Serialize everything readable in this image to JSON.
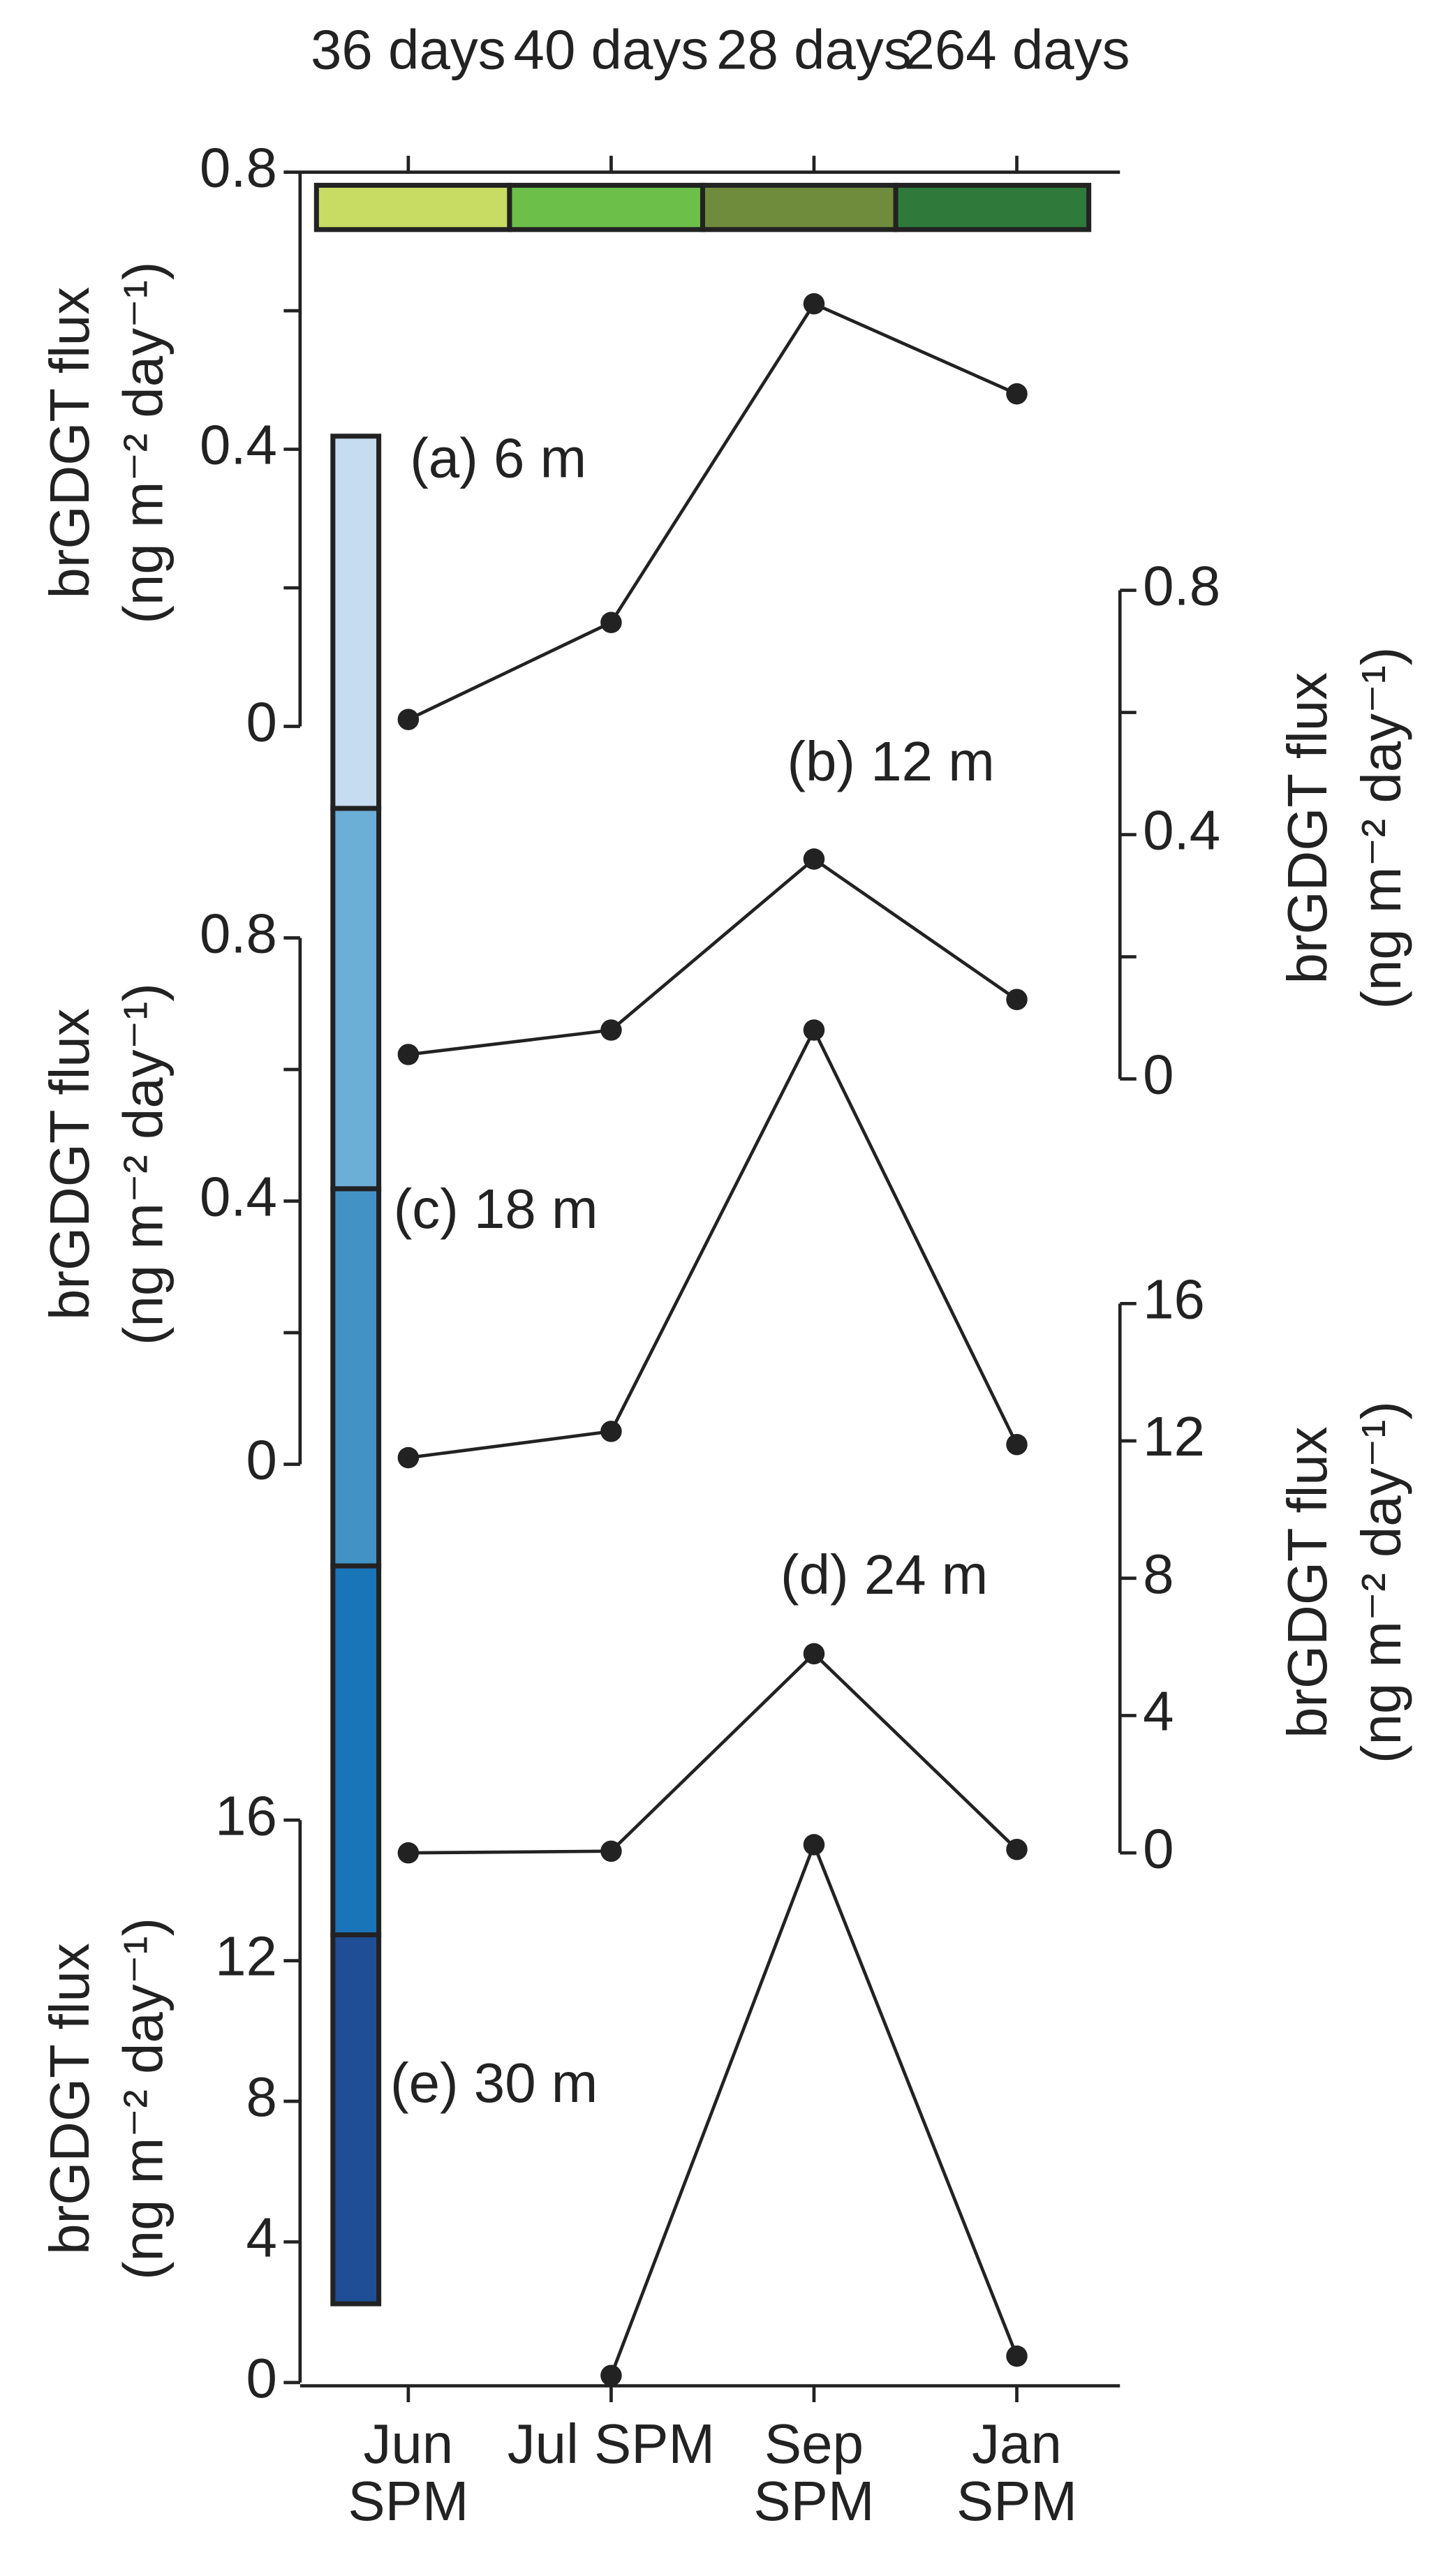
{
  "chart_data": [
    {
      "type": "line",
      "label": "(a) 6 m",
      "ylabel": "brGDGT flux",
      "yunit": "(ng m⁻² day⁻¹)",
      "axis_side": "left",
      "values": [
        0.01,
        0.15,
        0.61,
        0.48
      ],
      "ylim": [
        0,
        0.8
      ],
      "yticks": [
        0,
        0.4,
        0.8
      ],
      "minor_yticks": [
        0.2,
        0.6
      ],
      "line_color": "#222222",
      "depth_color": "#c6dcf0",
      "durations": [
        "36 days",
        "40 days",
        "28 days",
        "264 days"
      ],
      "duration_colors": [
        "#c8dc64",
        "#6cc04a",
        "#6f8c3c",
        "#2f7a3a"
      ]
    },
    {
      "type": "line",
      "label": "(b) 12 m",
      "ylabel": "brGDGT flux",
      "yunit": "(ng m⁻² day⁻¹)",
      "axis_side": "right",
      "values": [
        0.04,
        0.08,
        0.36,
        0.13
      ],
      "ylim": [
        0,
        0.8
      ],
      "yticks": [
        0,
        0.4,
        0.8
      ],
      "minor_yticks": [
        0.2,
        0.6
      ],
      "line_color": "#222222",
      "depth_color": "#6baed6"
    },
    {
      "type": "line",
      "label": "(c) 18 m",
      "ylabel": "brGDGT flux",
      "yunit": "(ng m⁻² day⁻¹)",
      "axis_side": "left",
      "values": [
        0.01,
        0.05,
        0.66,
        0.03
      ],
      "ylim": [
        0,
        0.8
      ],
      "yticks": [
        0,
        0.4,
        0.8
      ],
      "minor_yticks": [
        0.2,
        0.6
      ],
      "line_color": "#222222",
      "depth_color": "#4292c6"
    },
    {
      "type": "line",
      "label": "(d) 24 m",
      "ylabel": "brGDGT flux",
      "yunit": "(ng m⁻² day⁻¹)",
      "axis_side": "right",
      "values": [
        0,
        0.05,
        5.8,
        0.1
      ],
      "ylim": [
        0,
        16
      ],
      "yticks": [
        0,
        4,
        8,
        12,
        16
      ],
      "line_color": "#222222",
      "depth_color": "#1a74b8"
    },
    {
      "type": "line",
      "label": "(e) 30 m",
      "ylabel": "brGDGT flux",
      "yunit": "(ng m⁻² day⁻¹)",
      "axis_side": "left",
      "values": [
        null,
        0.2,
        15.3,
        0.75
      ],
      "ylim": [
        0,
        16
      ],
      "yticks": [
        0,
        4,
        8,
        12,
        16
      ],
      "line_color": "#222222",
      "depth_color": "#1f4e96",
      "categories": [
        "Jun SPM",
        "Jul SPM",
        "Sep SPM",
        "Jan SPM"
      ]
    }
  ]
}
